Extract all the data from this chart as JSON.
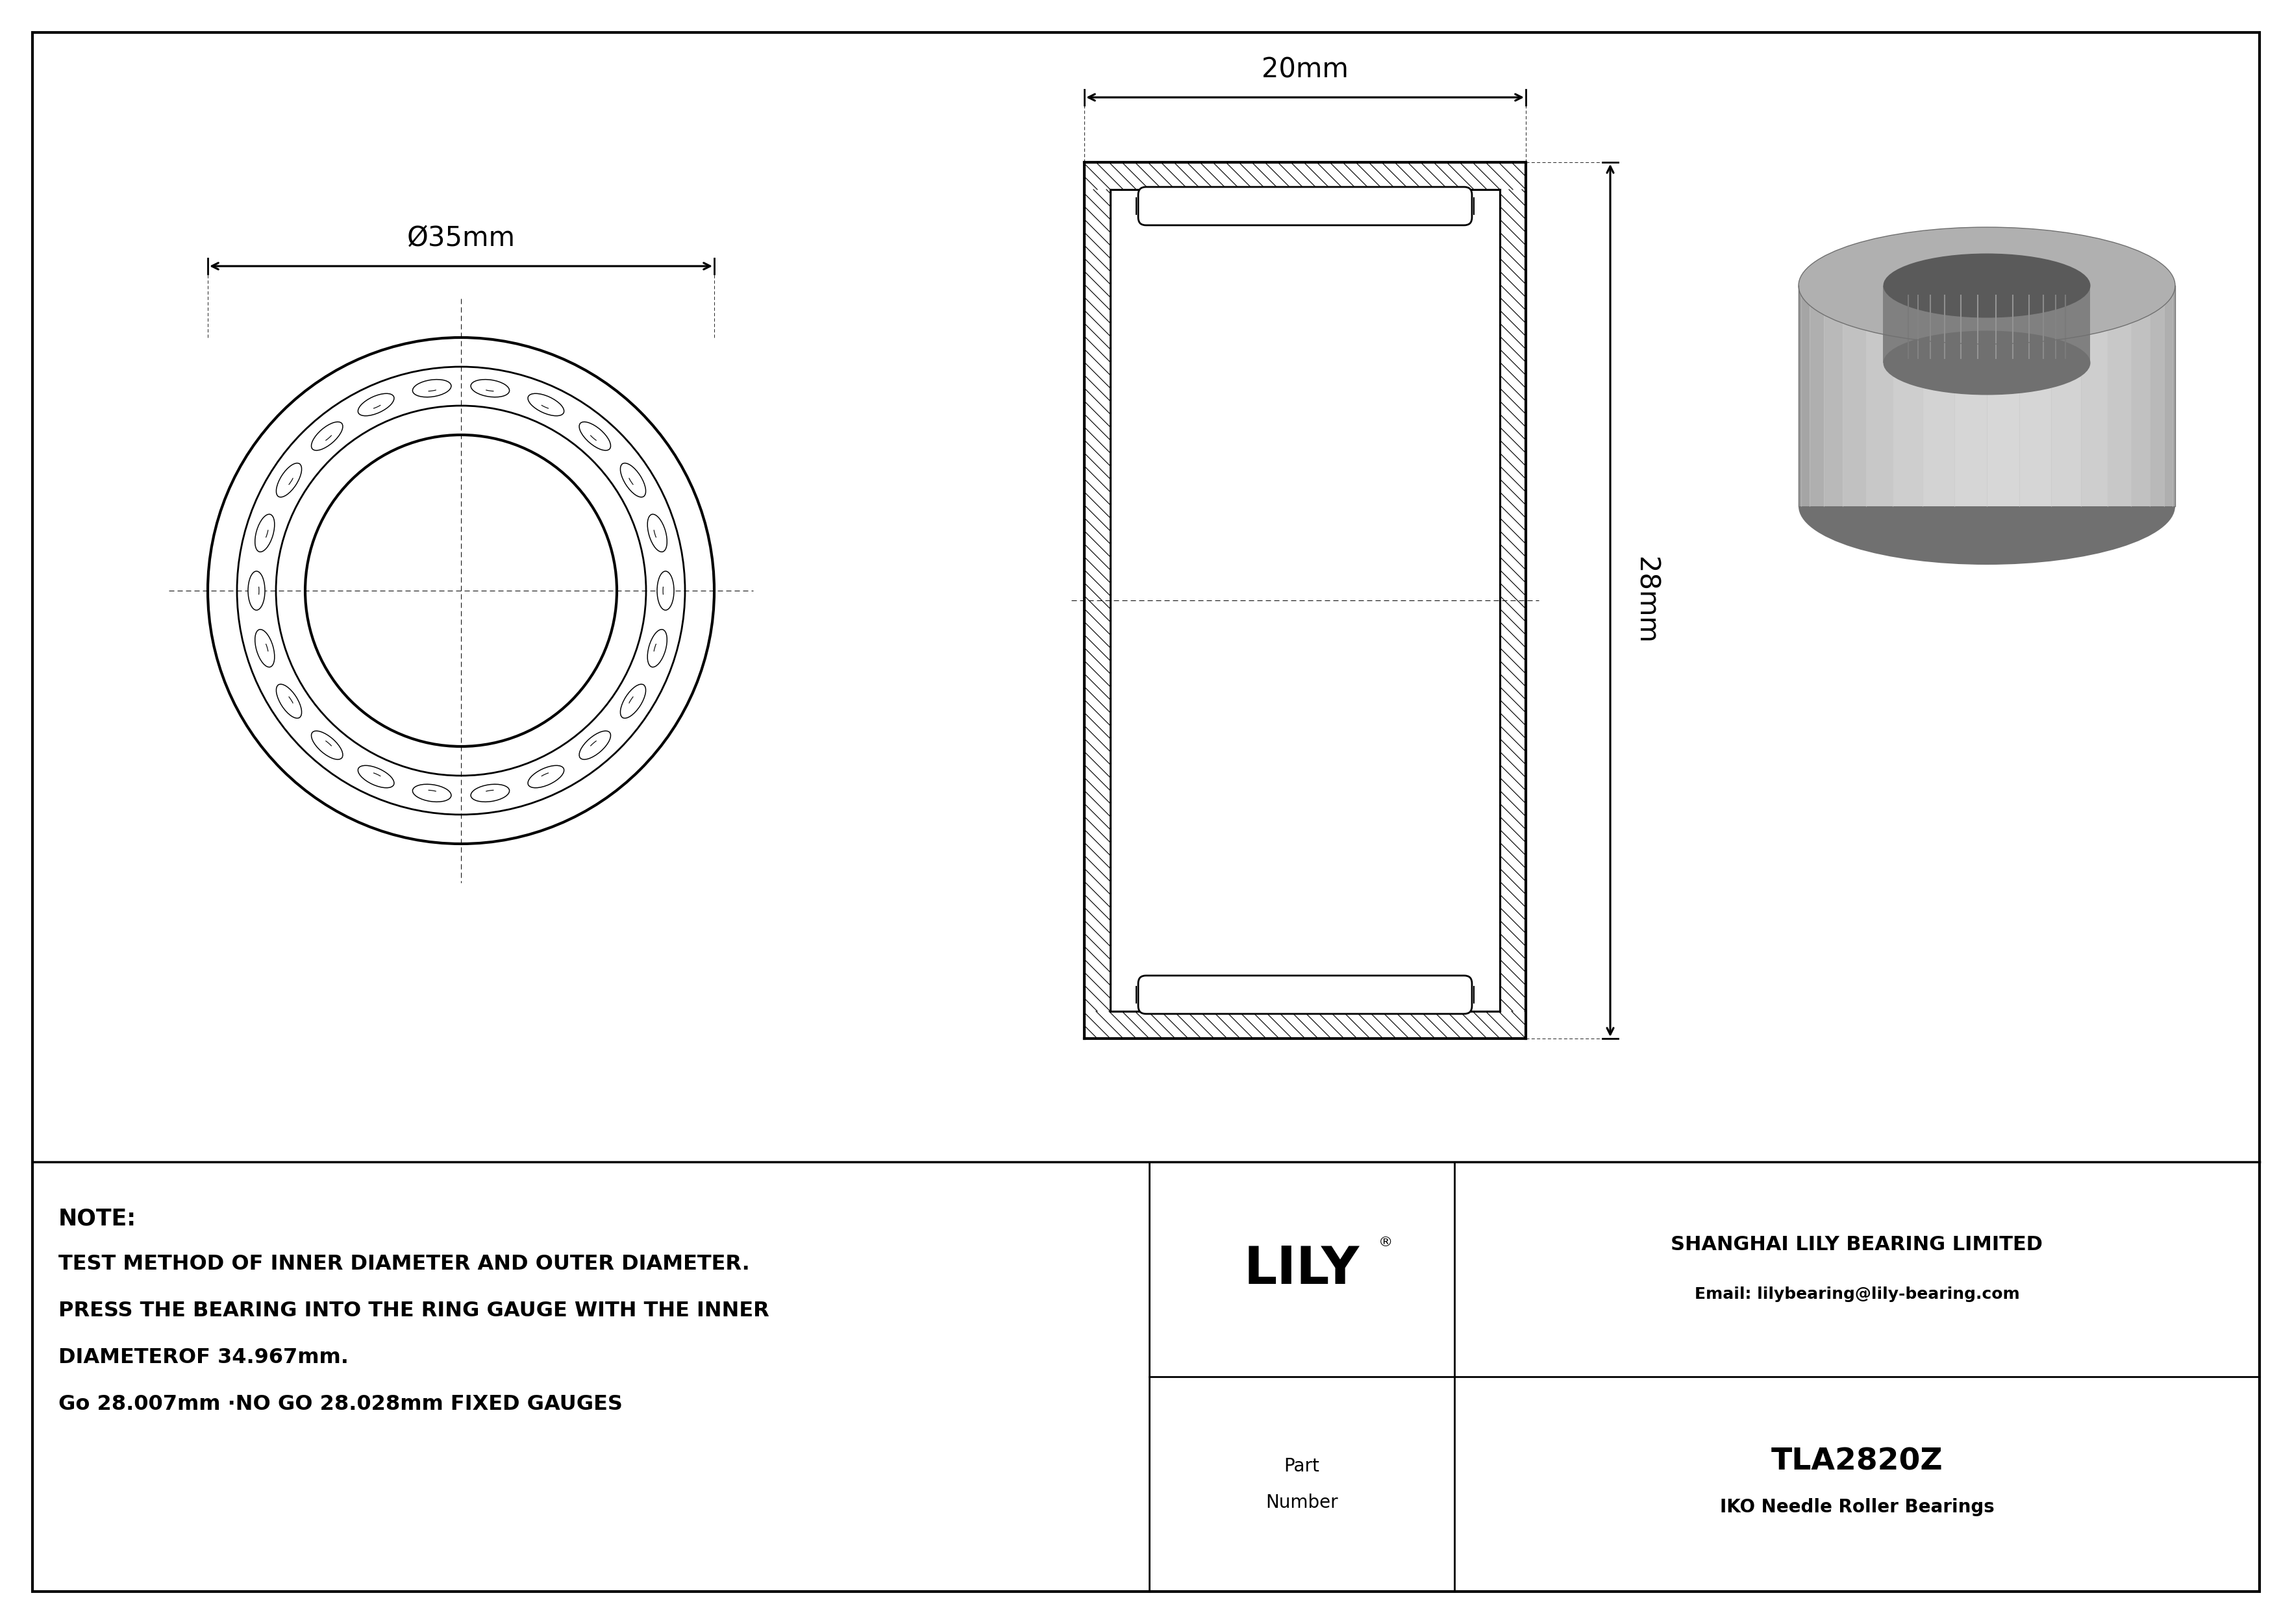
{
  "bg_color": "#ffffff",
  "dc": "#000000",
  "note_line1": "NOTE:",
  "note_line2": "TEST METHOD OF INNER DIAMETER AND OUTER DIAMETER.",
  "note_line3": "PRESS THE BEARING INTO THE RING GAUGE WITH THE INNER",
  "note_line4": "DIAMETEROF 34.967mm.",
  "note_line5": "Go 28.007mm ·NO GO 28.028mm FIXED GAUGES",
  "company_name": "SHANGHAI LILY BEARING LIMITED",
  "company_email": "Email: lilybearing@lily-bearing.com",
  "part_number": "TLA2820Z",
  "bearing_type": "IKO Needle Roller Bearings",
  "brand": "LILY",
  "diameter_label": "Ø35mm",
  "width_label": "20mm",
  "height_label": "28mm",
  "lw": 2.5,
  "tlw": 1.2
}
